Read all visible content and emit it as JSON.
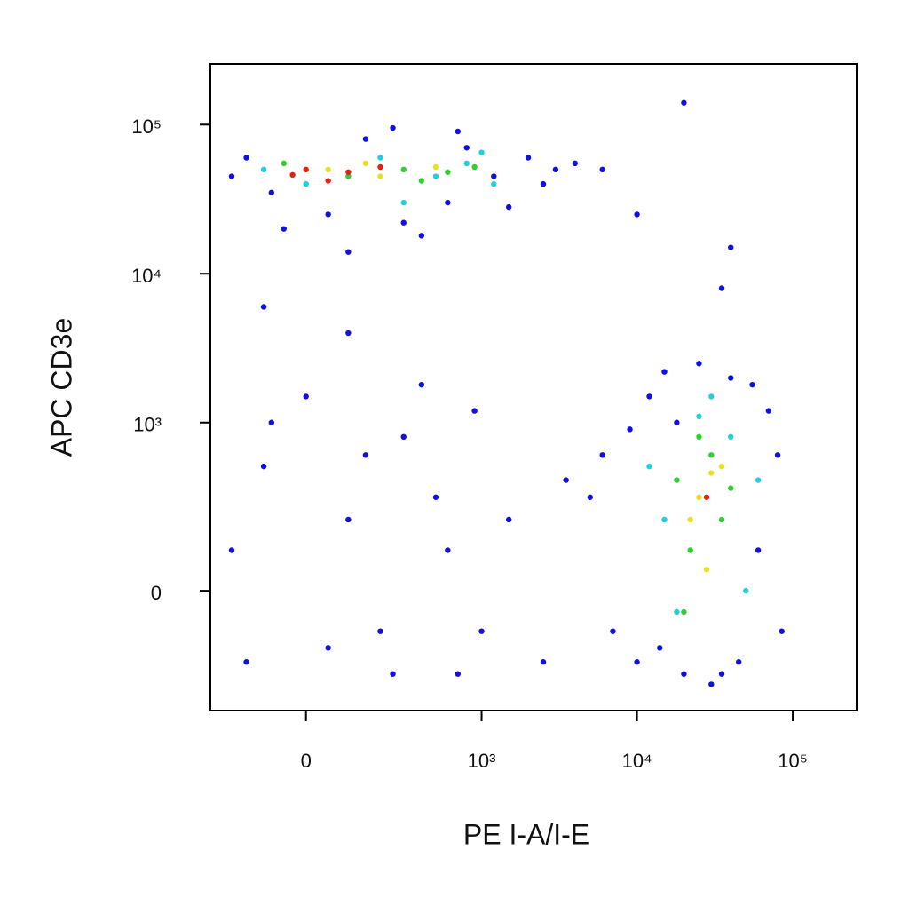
{
  "chart_data": {
    "type": "scatter",
    "xlabel": "PE I-A/I-E",
    "ylabel": "APC CD3e",
    "xscale": "asinh",
    "yscale": "asinh",
    "xlim": [
      -290,
      257000
    ],
    "ylim": [
      -465,
      255000
    ],
    "xticks": [
      0,
      {
        "value": 1000,
        "label": "10³"
      },
      {
        "value": 10000,
        "label": "10⁴"
      },
      {
        "value": 100000,
        "label": "10⁵"
      }
    ],
    "yticks": [
      0,
      {
        "value": 1000,
        "label": "10³"
      },
      {
        "value": 10000,
        "label": "10⁴"
      },
      {
        "value": 100000,
        "label": "10⁵"
      }
    ],
    "series": [
      {
        "color": "#1010e0",
        "x": [
          -150,
          -80,
          50,
          300,
          600,
          1200,
          2000,
          3000,
          800,
          150,
          -200,
          400,
          1500,
          4000,
          6000,
          100,
          -50,
          2500,
          700,
          250,
          5000,
          7000,
          9000,
          12000,
          15000,
          20000,
          30000,
          45000,
          60000,
          80000,
          70000,
          40000,
          25000,
          10000,
          6000,
          18000,
          55000,
          85000,
          35000,
          14000,
          -150,
          -100,
          0,
          100,
          200,
          300,
          500,
          700,
          900,
          -200,
          50,
          400,
          1500,
          2500,
          3500,
          150,
          -80,
          600,
          1000,
          250,
          20000,
          10000,
          40000,
          35000,
          -100,
          100
        ],
        "y": [
          60000,
          35000,
          25000,
          22000,
          30000,
          45000,
          60000,
          50000,
          70000,
          80000,
          45000,
          18000,
          28000,
          55000,
          50000,
          14000,
          20000,
          40000,
          90000,
          95000,
          300,
          -100,
          900,
          1500,
          2200,
          -250,
          -300,
          -200,
          100,
          600,
          1200,
          2000,
          2500,
          -200,
          600,
          1000,
          1800,
          -100,
          -250,
          -150,
          -200,
          500,
          1500,
          200,
          -100,
          800,
          300,
          -250,
          1200,
          100,
          -150,
          1800,
          200,
          -200,
          400,
          600,
          1000,
          100,
          -100,
          -250,
          140000,
          25000,
          15000,
          8000,
          6000,
          4000
        ]
      },
      {
        "color": "#20d0e0",
        "x": [
          0,
          200,
          500,
          800,
          1200,
          -100,
          300,
          1000,
          12000,
          18000,
          25000,
          40000,
          50000,
          30000,
          15000,
          60000
        ],
        "y": [
          40000,
          60000,
          45000,
          55000,
          40000,
          50000,
          30000,
          65000,
          500,
          -50,
          1100,
          800,
          0,
          1500,
          200,
          400
        ]
      },
      {
        "color": "#30d030",
        "x": [
          100,
          300,
          600,
          -50,
          400,
          900,
          18000,
          22000,
          30000,
          35000,
          25000,
          40000,
          20000
        ],
        "y": [
          45000,
          50000,
          48000,
          55000,
          42000,
          52000,
          400,
          100,
          600,
          200,
          800,
          350,
          -50
        ]
      },
      {
        "color": "#e8e020",
        "x": [
          50,
          200,
          500,
          150,
          25000,
          30000,
          22000,
          28000,
          35000
        ],
        "y": [
          50000,
          45000,
          52000,
          55000,
          300,
          450,
          200,
          50,
          500
        ]
      },
      {
        "color": "#e82010",
        "x": [
          0,
          100,
          50,
          200,
          -30,
          28000
        ],
        "y": [
          50000,
          48000,
          42000,
          52000,
          46000,
          300
        ]
      }
    ]
  }
}
